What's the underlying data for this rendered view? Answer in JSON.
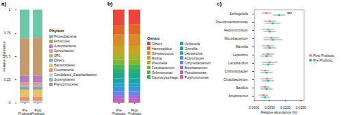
{
  "chart_data": [
    {
      "type": "bar",
      "panel": "a)",
      "stacked": true,
      "legend": "right",
      "legend_title": "Phylum",
      "ylabel": "Relative Abundance",
      "ylim": [
        0,
        1
      ],
      "yticks": [
        0,
        0.25,
        0.5,
        0.75,
        1
      ],
      "categories": [
        "Pre Probiotic",
        "Post Probiotic"
      ],
      "series": [
        {
          "name": "Proteobacteria",
          "color": "#6cc6a8",
          "values": [
            0.31,
            0.3
          ]
        },
        {
          "name": "Firmicutes",
          "color": "#c49a6c",
          "values": [
            0.4,
            0.41
          ]
        },
        {
          "name": "Actinobacteria",
          "color": "#b07fbe",
          "values": [
            0.07,
            0.07
          ]
        },
        {
          "name": "Spirochaetes",
          "color": "#e58fb4",
          "values": [
            0.03,
            0.03
          ]
        },
        {
          "name": "SR1",
          "color": "#a3c46a",
          "values": [
            0.02,
            0.02
          ]
        },
        {
          "name": "Others",
          "color": "#8da0cb",
          "values": [
            0.03,
            0.03
          ]
        },
        {
          "name": "Bacteroidetes",
          "color": "#e4c36b",
          "values": [
            0.08,
            0.08
          ]
        },
        {
          "name": "Fusobacteria",
          "color": "#f08e6a",
          "values": [
            0.04,
            0.04
          ]
        },
        {
          "name": "Candidatus_Saccharibacteri",
          "color": "#d0d0d0",
          "values": [
            0.01,
            0.01
          ]
        },
        {
          "name": "Synergistetes",
          "color": "#7fb9d8",
          "values": [
            0.005,
            0.005
          ]
        },
        {
          "name": "Planctomycetes",
          "color": "#9a9a9a",
          "values": [
            0.005,
            0.005
          ]
        }
      ]
    },
    {
      "type": "bar",
      "panel": "b)",
      "stacked": true,
      "legend": "right",
      "legend_title": "Genus",
      "tick_labels": "x",
      "ylim": [
        0,
        1
      ],
      "categories": [
        "Pre Probiotic",
        "Post Probiotic"
      ],
      "series": [
        {
          "name": "Others",
          "color": "#e8453c",
          "values": [
            0.17,
            0.16
          ]
        },
        {
          "name": "Haemophilus",
          "color": "#e0662e",
          "values": [
            0.1,
            0.11
          ]
        },
        {
          "name": "Streptococcus",
          "color": "#d98a2b",
          "values": [
            0.12,
            0.12
          ]
        },
        {
          "name": "Rothia",
          "color": "#c9a227",
          "values": [
            0.08,
            0.08
          ]
        },
        {
          "name": "Prevotella",
          "color": "#a8b02a",
          "values": [
            0.07,
            0.07
          ]
        },
        {
          "name": "Fusobacterium",
          "color": "#7fb434",
          "values": [
            0.05,
            0.05
          ]
        },
        {
          "name": "Selenomonas",
          "color": "#4fb447",
          "values": [
            0.04,
            0.04
          ]
        },
        {
          "name": "Capnocytophaga",
          "color": "#2fae6a",
          "values": [
            0.04,
            0.04
          ]
        },
        {
          "name": "Veillonella",
          "color": "#22a88c",
          "values": [
            0.07,
            0.07
          ]
        },
        {
          "name": "Gemella",
          "color": "#1fa5a8",
          "values": [
            0.05,
            0.05
          ]
        },
        {
          "name": "Leptotrichia",
          "color": "#22a2c6",
          "values": [
            0.04,
            0.04
          ]
        },
        {
          "name": "Actinomyces",
          "color": "#3a96dc",
          "values": [
            0.05,
            0.05
          ]
        },
        {
          "name": "Corynebacterium",
          "color": "#6a84e0",
          "values": [
            0.04,
            0.04
          ]
        },
        {
          "name": "Brevibacterium",
          "color": "#9470d8",
          "values": [
            0.03,
            0.03
          ]
        },
        {
          "name": "Pseudomonas",
          "color": "#b862c4",
          "values": [
            0.03,
            0.03
          ]
        },
        {
          "name": "Porphyromonas",
          "color": "#d15a9e",
          "values": [
            0.02,
            0.02
          ]
        }
      ]
    },
    {
      "type": "dot",
      "panel": "c)",
      "orientation": "horizontal",
      "legend": "right",
      "xlabel": "Relative abundance (%)",
      "xlim": [
        0,
        0.016
      ],
      "xticks": [
        {
          "value": 0,
          "label": "0.0000"
        },
        {
          "value": 0.005,
          "label": "0.0050"
        },
        {
          "value": 0.01,
          "label": "0.0100"
        },
        {
          "value": 0.015,
          "label": "0.0150"
        }
      ],
      "categories": [
        "Schlegelella",
        "Pseudoxanthomonas",
        "Pedomicrobium",
        "Microbacterium",
        "Massilia",
        "Leptothrix",
        "Lactobacillus",
        "Chthoniobacter",
        "Cloacibacterium",
        "Bacillus",
        "Amaricoccus"
      ],
      "series": [
        {
          "name": "Post Probiotic",
          "color": "#f8766d",
          "values": [
            0.004,
            0.005,
            0.0045,
            0.0055,
            0.0045,
            0.0045,
            0.005,
            0.0035,
            0.004,
            0.0035,
            0.003
          ],
          "errors": [
            0.0015,
            0.002,
            0.002,
            0.0025,
            0.002,
            0.002,
            0.0025,
            0.0015,
            0.002,
            0.0015,
            0.0015
          ]
        },
        {
          "name": "Pre Probiotic",
          "color": "#00bfc4",
          "values": [
            0.008,
            0.006,
            0.005,
            0.006,
            0.005,
            0.004,
            0.0045,
            0.004,
            0.0045,
            0.004,
            0.0035
          ],
          "errors": [
            0.002,
            0.0025,
            0.002,
            0.003,
            0.002,
            0.002,
            0.002,
            0.002,
            0.002,
            0.002,
            0.0015
          ]
        }
      ],
      "annotations": [
        {
          "category": "Schlegelella",
          "text": "***"
        }
      ]
    }
  ]
}
